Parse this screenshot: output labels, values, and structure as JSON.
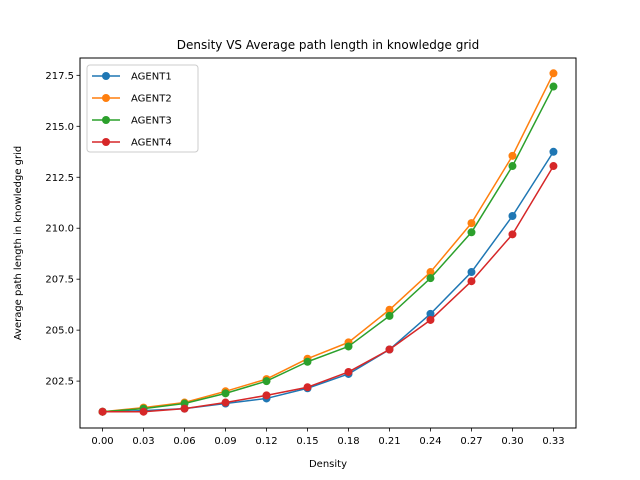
{
  "chart_data": {
    "type": "line",
    "title": "Density VS Average path length in knowledge grid",
    "xlabel": "Density",
    "ylabel": "Average path length in knowledge grid",
    "x": [
      0.0,
      0.03,
      0.06,
      0.09,
      0.12,
      0.15,
      0.18,
      0.21,
      0.24,
      0.27,
      0.3,
      0.33
    ],
    "x_tick_labels": [
      "0.00",
      "0.03",
      "0.06",
      "0.09",
      "0.12",
      "0.15",
      "0.18",
      "0.21",
      "0.24",
      "0.27",
      "0.30",
      "0.33"
    ],
    "y_ticks": [
      202.5,
      205.0,
      207.5,
      210.0,
      212.5,
      215.0,
      217.5
    ],
    "y_tick_labels": [
      "202.5",
      "205.0",
      "207.5",
      "210.0",
      "212.5",
      "215.0",
      "217.5"
    ],
    "xlim": [
      -0.0165,
      0.3465
    ],
    "ylim": [
      200.2,
      218.35
    ],
    "grid": false,
    "legend_position": "upper-left",
    "series": [
      {
        "name": "AGENT1",
        "color": "#1f77b4",
        "values": [
          201.0,
          201.05,
          201.15,
          201.4,
          201.65,
          202.15,
          202.85,
          204.05,
          205.8,
          207.85,
          210.6,
          213.75
        ]
      },
      {
        "name": "AGENT2",
        "color": "#ff7f0e",
        "values": [
          201.0,
          201.2,
          201.45,
          202.0,
          202.6,
          203.6,
          204.4,
          206.0,
          207.85,
          210.25,
          213.55,
          217.6
        ]
      },
      {
        "name": "AGENT3",
        "color": "#2ca02c",
        "values": [
          201.0,
          201.15,
          201.4,
          201.9,
          202.5,
          203.45,
          204.2,
          205.7,
          207.55,
          209.8,
          213.05,
          216.95
        ]
      },
      {
        "name": "AGENT4",
        "color": "#d62728",
        "values": [
          201.0,
          201.0,
          201.15,
          201.45,
          201.8,
          202.2,
          202.95,
          204.05,
          205.5,
          207.4,
          209.7,
          213.05
        ]
      }
    ]
  }
}
